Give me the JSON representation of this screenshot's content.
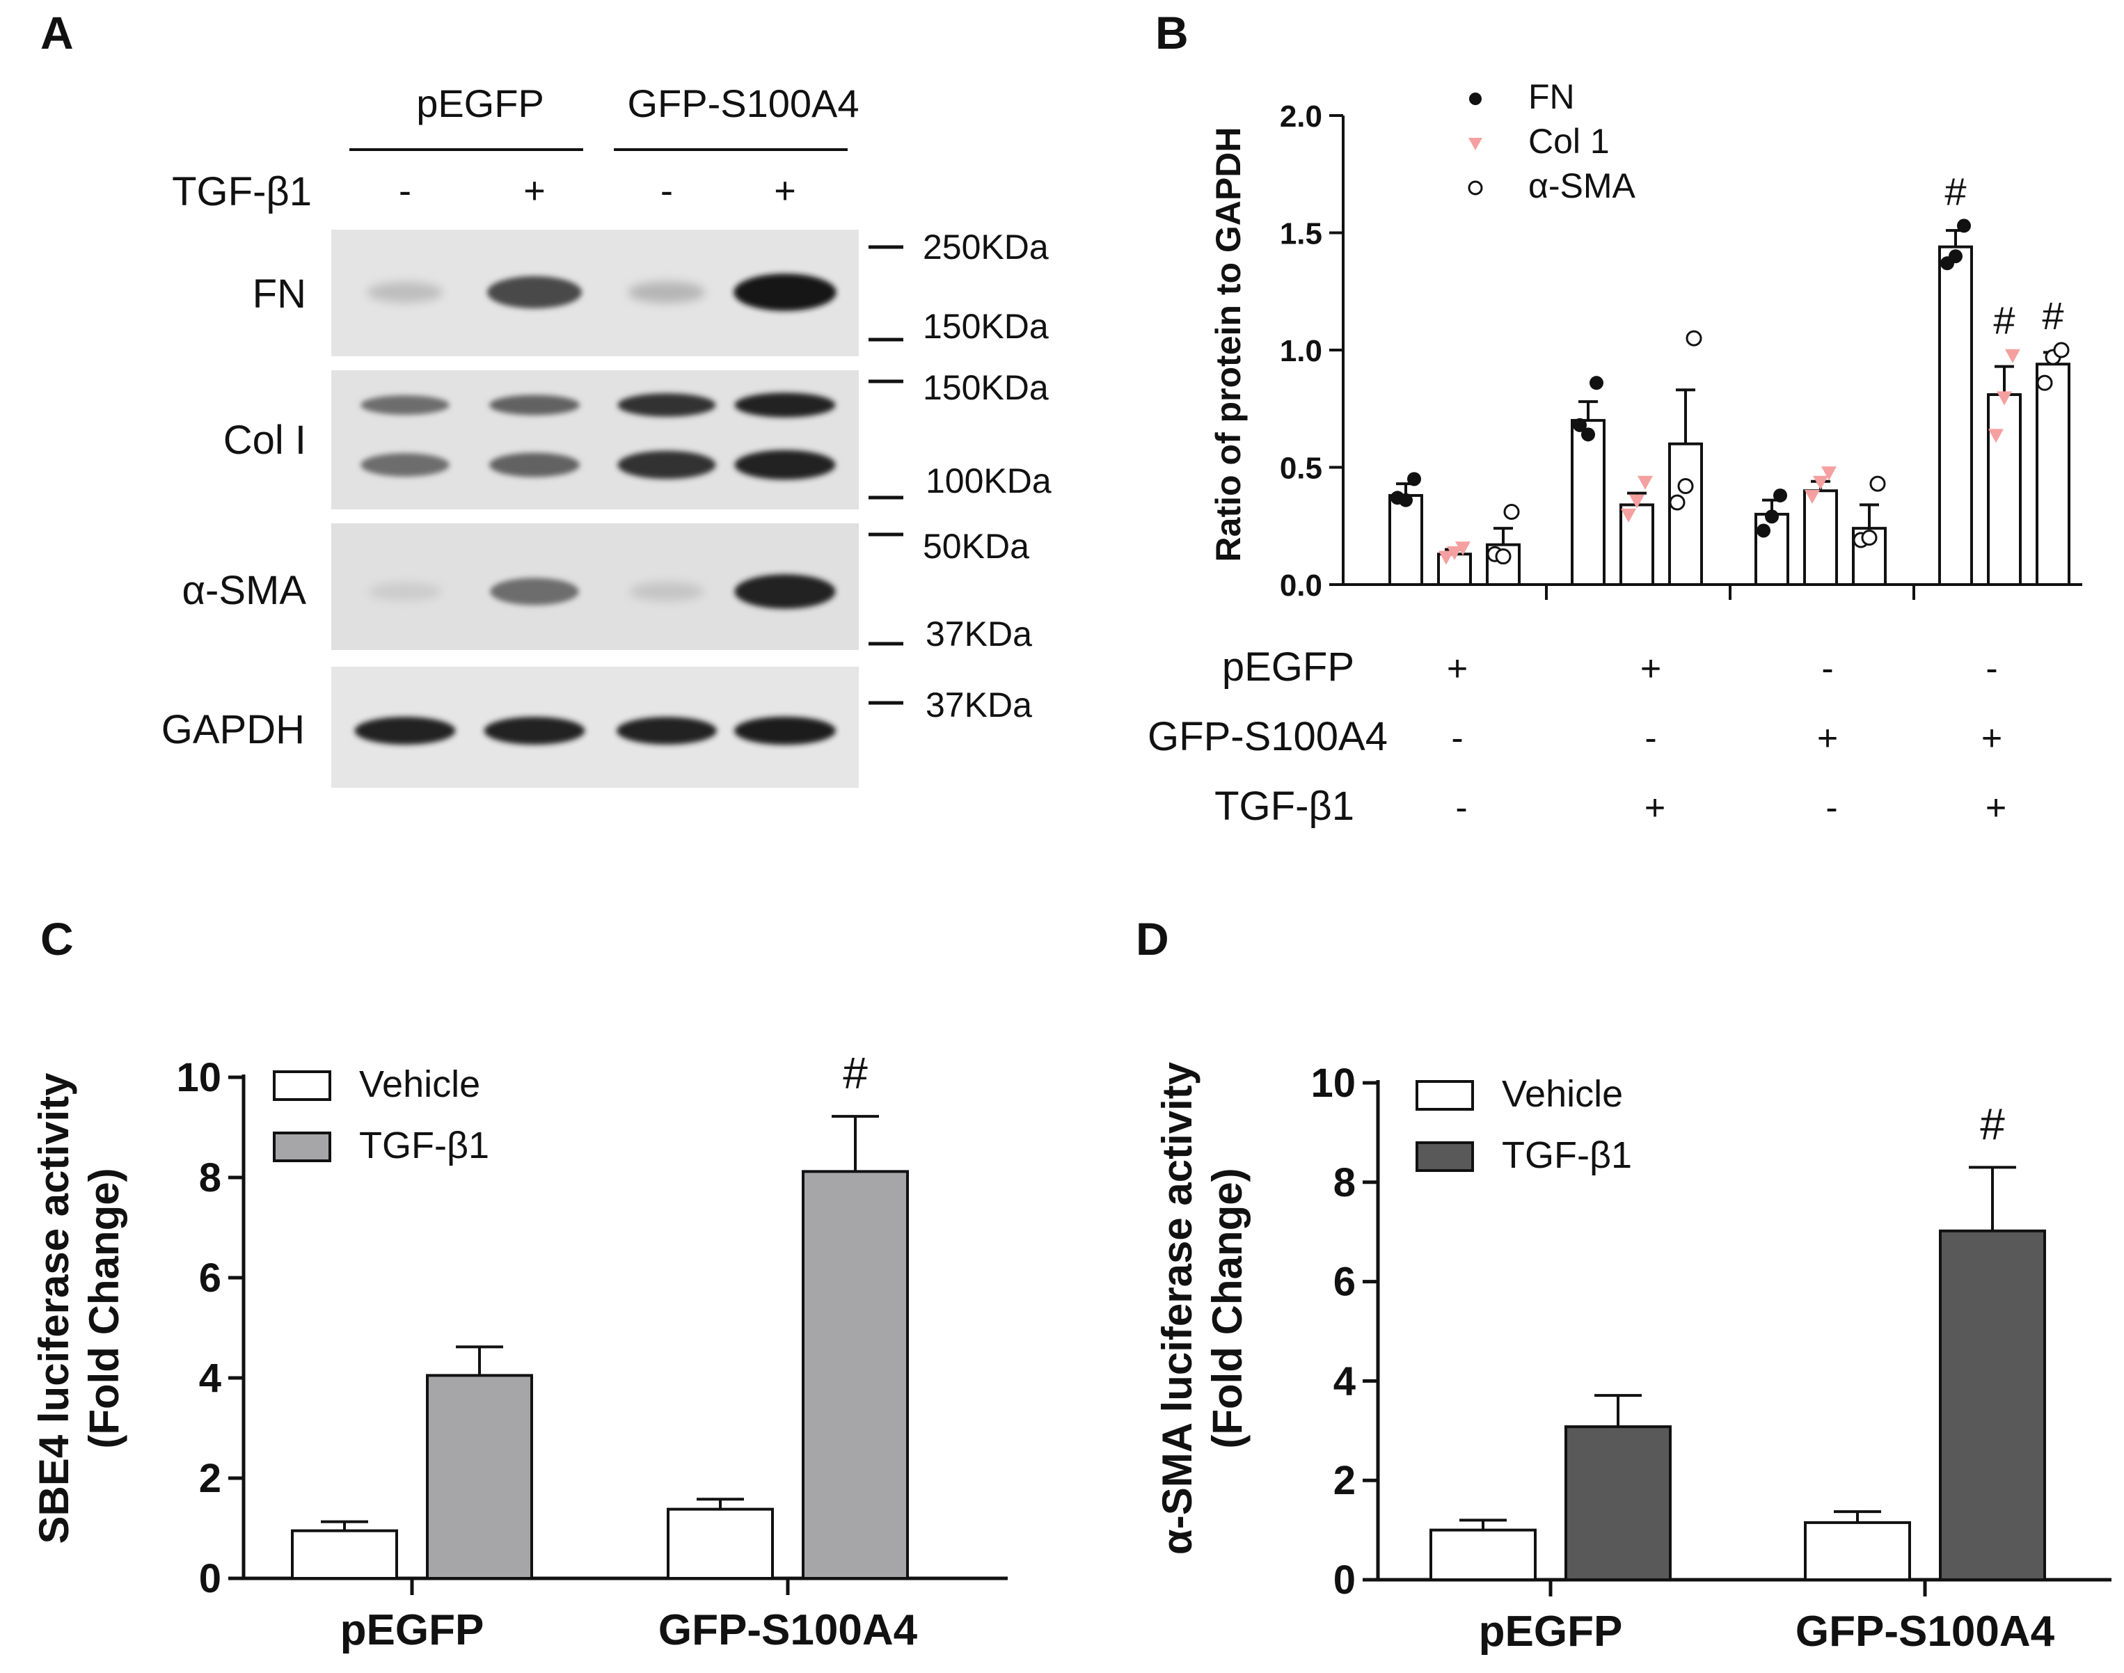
{
  "panel_letters": {
    "a": "A",
    "b": "B",
    "c": "C",
    "d": "D"
  },
  "panel_a": {
    "groups": [
      "pEGFP",
      "GFP-S100A4"
    ],
    "treatment_label": "TGF-β1",
    "treatment_signs": [
      "-",
      "+",
      "-",
      "+"
    ],
    "rows": [
      {
        "label": "FN",
        "intensity": [
          0.18,
          0.72,
          0.22,
          0.95
        ]
      },
      {
        "label": "Col I",
        "intensity": [
          0.55,
          0.6,
          0.82,
          0.9
        ]
      },
      {
        "label": "α-SMA",
        "intensity": [
          0.12,
          0.55,
          0.15,
          0.9
        ]
      },
      {
        "label": "GAPDH",
        "intensity": [
          0.9,
          0.9,
          0.88,
          0.92
        ]
      }
    ],
    "markers": [
      "250KDa",
      "150KDa",
      "150KDa",
      "100KDa",
      "50KDa",
      "37KDa",
      "37KDa"
    ]
  },
  "chart_data": [
    {
      "type": "bar",
      "panel": "B",
      "ylabel": "Ratio of protein to GAPDH",
      "ylim": [
        0,
        2.0
      ],
      "yticks": [
        "0.0",
        "0.5",
        "1.0",
        "1.5",
        "2.0"
      ],
      "series": [
        {
          "name": "FN",
          "marker": "filled-circle",
          "color": "#111111",
          "values": [
            0.38,
            0.7,
            0.3,
            1.44
          ],
          "errors": [
            0.05,
            0.08,
            0.06,
            0.07
          ],
          "points": [
            [
              0.37,
              0.36,
              0.45
            ],
            [
              0.68,
              0.64,
              0.86
            ],
            [
              0.23,
              0.29,
              0.38
            ],
            [
              1.37,
              1.4,
              1.53
            ]
          ],
          "annotations": [
            "",
            "",
            "",
            "#"
          ]
        },
        {
          "name": "Col 1",
          "marker": "triangle-down",
          "color": "#f4a0a0",
          "values": [
            0.13,
            0.34,
            0.4,
            0.81
          ],
          "errors": [
            0.02,
            0.05,
            0.04,
            0.12
          ],
          "points": [
            [
              0.12,
              0.14,
              0.16
            ],
            [
              0.3,
              0.36,
              0.44
            ],
            [
              0.38,
              0.44,
              0.48
            ],
            [
              0.64,
              0.8,
              0.98
            ]
          ],
          "annotations": [
            "",
            "",
            "",
            "#"
          ]
        },
        {
          "name": "α-SMA",
          "marker": "open-circle",
          "color": "#111111",
          "values": [
            0.17,
            0.6,
            0.24,
            0.94
          ],
          "errors": [
            0.07,
            0.23,
            0.1,
            0.05
          ],
          "points": [
            [
              0.13,
              0.12,
              0.31
            ],
            [
              0.35,
              0.42,
              1.05
            ],
            [
              0.19,
              0.2,
              0.43
            ],
            [
              0.86,
              0.97,
              1.0
            ]
          ],
          "annotations": [
            "",
            "",
            "",
            "#"
          ]
        }
      ],
      "condition_table": [
        {
          "label": "pEGFP",
          "signs": [
            "+",
            "+",
            "-",
            "-"
          ]
        },
        {
          "label": "GFP-S100A4",
          "signs": [
            "-",
            "-",
            "+",
            "+"
          ]
        },
        {
          "label": "TGF-β1",
          "signs": [
            "-",
            "+",
            "-",
            "+"
          ]
        }
      ],
      "legend_position": "top-center"
    },
    {
      "type": "bar",
      "panel": "C",
      "ylabel": "SBE4 luciferase activity (Fold Change)",
      "ylabel_lines": [
        "SBE4 luciferase activity",
        "(Fold Change)"
      ],
      "categories": [
        "pEGFP",
        "GFP-S100A4"
      ],
      "ylim": [
        0,
        10
      ],
      "yticks": [
        "0",
        "2",
        "4",
        "6",
        "8",
        "10"
      ],
      "series": [
        {
          "name": "Vehicle",
          "color": "#ffffff",
          "values": [
            0.95,
            1.38
          ],
          "errors": [
            0.18,
            0.2
          ],
          "annotations": [
            "",
            ""
          ]
        },
        {
          "name": "TGF-β1",
          "color": "#a6a6a8",
          "values": [
            4.05,
            8.12
          ],
          "errors": [
            0.57,
            1.1
          ],
          "annotations": [
            "",
            "#"
          ]
        }
      ],
      "legend_position": "top-left"
    },
    {
      "type": "bar",
      "panel": "D",
      "ylabel": "α-SMA luciferase activity (Fold Change)",
      "ylabel_lines": [
        "α-SMA luciferase activity",
        "(Fold Change)"
      ],
      "categories": [
        "pEGFP",
        "GFP-S100A4"
      ],
      "ylim": [
        0,
        10
      ],
      "yticks": [
        "0",
        "2",
        "4",
        "6",
        "8",
        "10"
      ],
      "series": [
        {
          "name": "Vehicle",
          "color": "#ffffff",
          "values": [
            1.0,
            1.15
          ],
          "errors": [
            0.2,
            0.22
          ],
          "annotations": [
            "",
            ""
          ]
        },
        {
          "name": "TGF-β1",
          "color": "#595959",
          "values": [
            3.08,
            7.02
          ],
          "errors": [
            0.63,
            1.28
          ],
          "annotations": [
            "",
            "#"
          ]
        }
      ],
      "legend_position": "top-left"
    }
  ]
}
